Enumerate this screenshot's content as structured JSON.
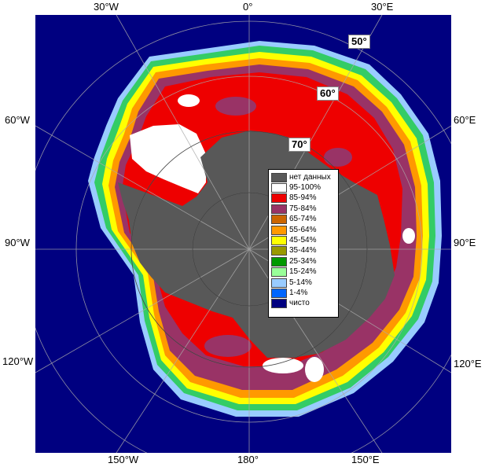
{
  "lon_labels": {
    "w30": "30°W",
    "zero": "0°",
    "e30": "30°E",
    "w60": "60°W",
    "e60": "60°E",
    "w90": "90°W",
    "e90": "90°E",
    "w120": "120°W",
    "e120": "120°E",
    "w150": "150°W",
    "lon180": "180°",
    "e150": "150°E"
  },
  "lat_labels": {
    "lat50": "50°",
    "lat60": "60°",
    "lat70": "70°"
  },
  "legend": [
    {
      "label": "нет данных",
      "color": "#585858"
    },
    {
      "label": "95-100%",
      "color": "#ffffff"
    },
    {
      "label": "85-94%",
      "color": "#ee0000"
    },
    {
      "label": "75-84%",
      "color": "#993366"
    },
    {
      "label": "65-74%",
      "color": "#cc6600"
    },
    {
      "label": "55-64%",
      "color": "#ff9900"
    },
    {
      "label": "45-54%",
      "color": "#ffff00"
    },
    {
      "label": "35-44%",
      "color": "#999900"
    },
    {
      "label": "25-34%",
      "color": "#009900"
    },
    {
      "label": "15-24%",
      "color": "#99ff99"
    },
    {
      "label": "5-14%",
      "color": "#99ccff"
    },
    {
      "label": "1-4%",
      "color": "#0066ff"
    },
    {
      "label": "чисто",
      "color": "#000080"
    }
  ]
}
